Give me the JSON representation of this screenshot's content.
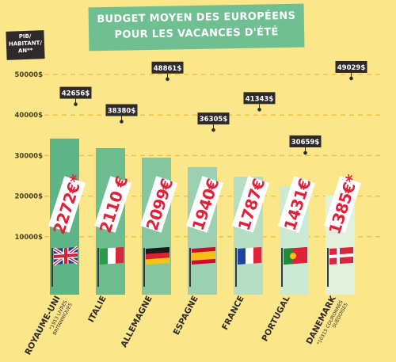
{
  "title_line1": "BUDGET MOYEN DES EUROPÉENS",
  "title_line2": "POUR LES VACANCES D'ÉTÉ",
  "y_unit": [
    "PIB/",
    "HABITANT/",
    "AN**"
  ],
  "colors": {
    "background": "#fbe78a",
    "banner": "#6fbf93",
    "label_dark": "#2e2a2a",
    "budget_red": "#e0213b",
    "grid": "#e8bf3c"
  },
  "chart_data": {
    "type": "bar",
    "title": "BUDGET MOYEN DES EUROPÉENS POUR LES VACANCES D'ÉTÉ",
    "ylabel": "PIB/ HABITANT/ AN**",
    "ylim": [
      0,
      50000
    ],
    "y_ticks": [
      10000,
      20000,
      30000,
      40000,
      50000
    ],
    "y_tick_labels": [
      "10000$",
      "20000$",
      "30000$",
      "40000$",
      "50000$"
    ],
    "grid": true,
    "categories": [
      "ROYAUME-UNI",
      "ITALIE",
      "ALLEMAGNE",
      "ESPAGNE",
      "FRANCE",
      "PORTUGAL",
      "DANEMARK"
    ],
    "category_notes": [
      "*1913 LIVRES BRITANNIQUES",
      "",
      "",
      "",
      "",
      "",
      "*10315 COURONNES SUÉDOISES"
    ],
    "flags": [
      "uk",
      "italy",
      "germany",
      "spain",
      "france",
      "portugal",
      "denmark"
    ],
    "series": [
      {
        "name": "PIB/HABITANT/AN",
        "values": [
          42656,
          38380,
          48861,
          36305,
          41343,
          30659,
          49029
        ],
        "labels": [
          "42656$",
          "38380$",
          "48861$",
          "36305$",
          "41343$",
          "30659$",
          "49029$"
        ]
      },
      {
        "name": "BUDGET MOYEN",
        "values": [
          2272,
          2110,
          2099,
          1940,
          1787,
          1431,
          1385
        ],
        "labels": [
          "2272€*",
          "2110 €",
          "2099€",
          "1940€",
          "1787€",
          "1431€",
          "1385€*"
        ]
      }
    ]
  }
}
